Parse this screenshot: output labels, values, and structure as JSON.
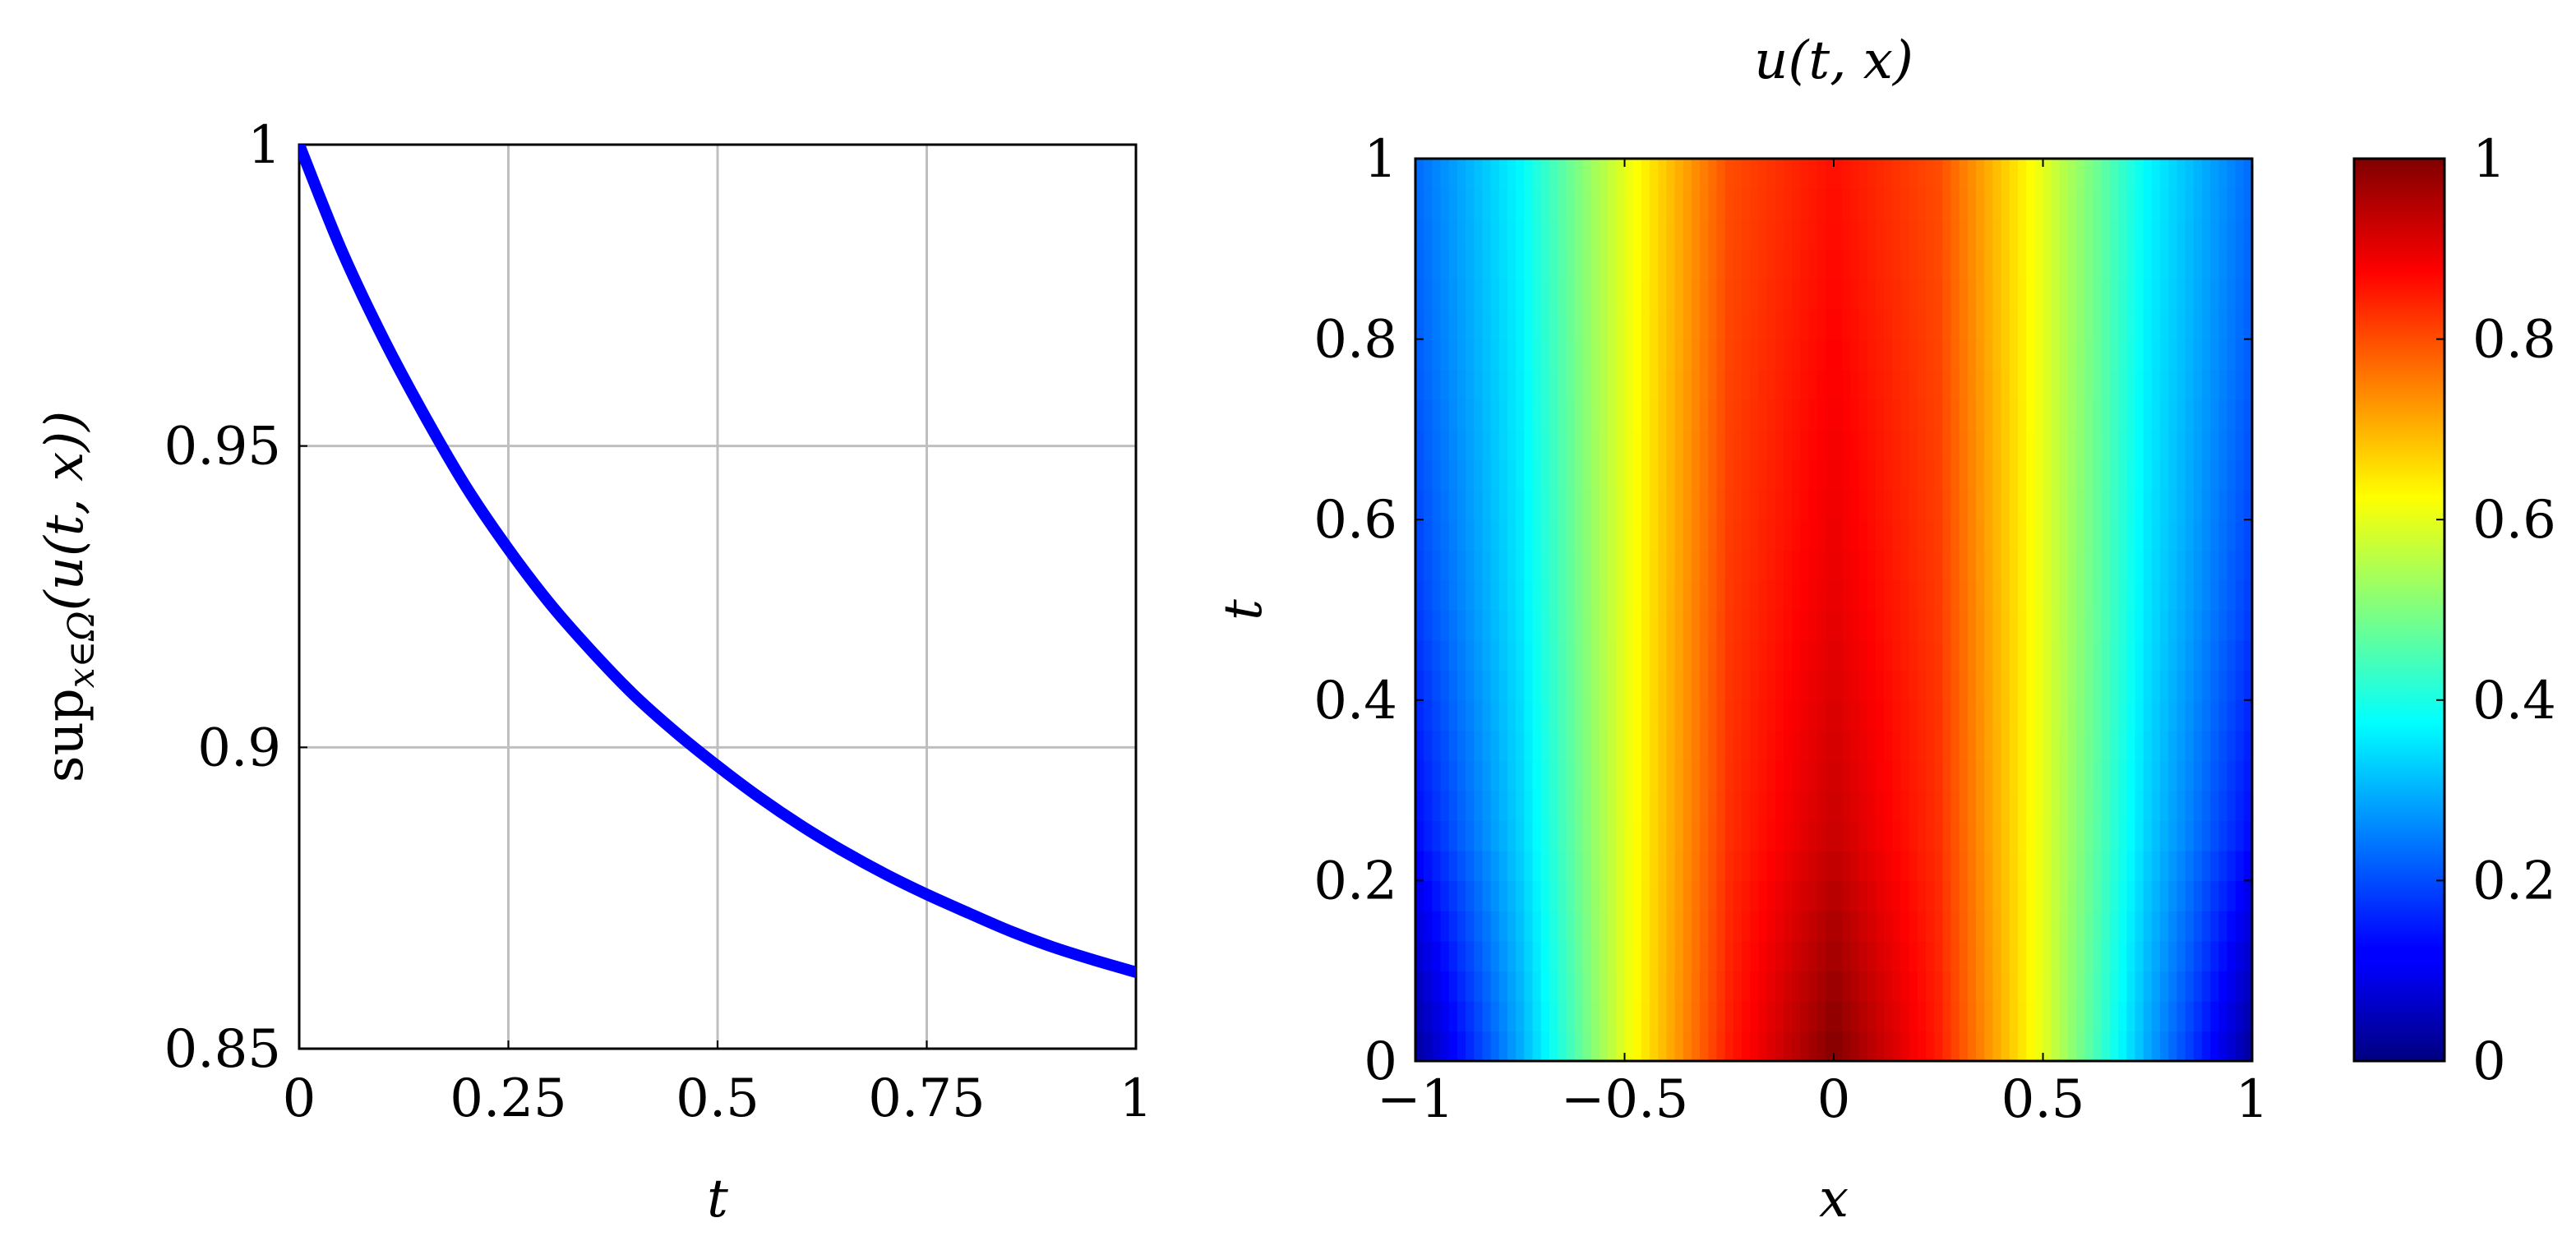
{
  "chart_data": [
    {
      "type": "line",
      "title": "",
      "xlabel": "t",
      "ylabel": "sup",
      "ylabel_sub": "x∈Ω",
      "ylabel_rest": "(u(t, x))",
      "xlim": [
        0,
        1
      ],
      "ylim": [
        0.85,
        1
      ],
      "grid": true,
      "xticks": [
        0,
        0.25,
        0.5,
        0.75,
        1
      ],
      "xtick_labels": [
        "0",
        "0.25",
        "0.5",
        "0.75",
        "1"
      ],
      "yticks": [
        0.85,
        0.9,
        0.95,
        1
      ],
      "ytick_labels": [
        "0.85",
        "0.9",
        "0.95",
        "1"
      ],
      "series": [
        {
          "color": "#0000ff",
          "x": [
            0,
            0.05,
            0.1,
            0.15,
            0.2,
            0.25,
            0.3,
            0.35,
            0.4,
            0.45,
            0.5,
            0.55,
            0.6,
            0.65,
            0.7,
            0.75,
            0.8,
            0.85,
            0.9,
            0.95,
            1
          ],
          "y": [
            1.0,
            0.9827,
            0.968,
            0.955,
            0.9431,
            0.9329,
            0.9238,
            0.9159,
            0.9087,
            0.9025,
            0.8969,
            0.8917,
            0.887,
            0.8828,
            0.879,
            0.8756,
            0.8725,
            0.8695,
            0.8669,
            0.8647,
            0.8627
          ]
        }
      ]
    },
    {
      "type": "heatmap",
      "title": "u(t, x)",
      "xlabel": "x",
      "ylabel": "t",
      "xlim": [
        -1,
        1
      ],
      "ylim": [
        0,
        1
      ],
      "xticks": [
        -1,
        -0.5,
        0,
        0.5,
        1
      ],
      "xtick_labels": [
        "−1",
        "−0.5",
        "0",
        "0.5",
        "1"
      ],
      "yticks": [
        0,
        0.2,
        0.4,
        0.6,
        0.8,
        1
      ],
      "ytick_labels": [
        "0",
        "0.2",
        "0.4",
        "0.6",
        "0.8",
        "1"
      ],
      "colormap": "jet",
      "colorbar_range": [
        0,
        1
      ],
      "colorbar_ticks": [
        0,
        0.2,
        0.4,
        0.6,
        0.8,
        1
      ],
      "colorbar_tick_labels": [
        "0",
        "0.2",
        "0.4",
        "0.6",
        "0.8",
        "1"
      ],
      "x": [
        -1,
        -0.75,
        -0.5,
        -0.25,
        0,
        0.25,
        0.5,
        0.75,
        1
      ],
      "y": [
        0,
        0.25,
        0.5,
        0.75,
        1
      ],
      "z": [
        [
          0.02,
          0.29,
          0.6,
          0.85,
          1.0,
          0.85,
          0.6,
          0.29,
          0.02
        ],
        [
          0.13,
          0.33,
          0.6,
          0.83,
          0.93,
          0.83,
          0.6,
          0.33,
          0.13
        ],
        [
          0.18,
          0.35,
          0.6,
          0.82,
          0.9,
          0.82,
          0.6,
          0.35,
          0.18
        ],
        [
          0.21,
          0.36,
          0.6,
          0.81,
          0.88,
          0.81,
          0.6,
          0.36,
          0.21
        ],
        [
          0.23,
          0.37,
          0.6,
          0.8,
          0.86,
          0.8,
          0.6,
          0.37,
          0.23
        ]
      ]
    }
  ]
}
